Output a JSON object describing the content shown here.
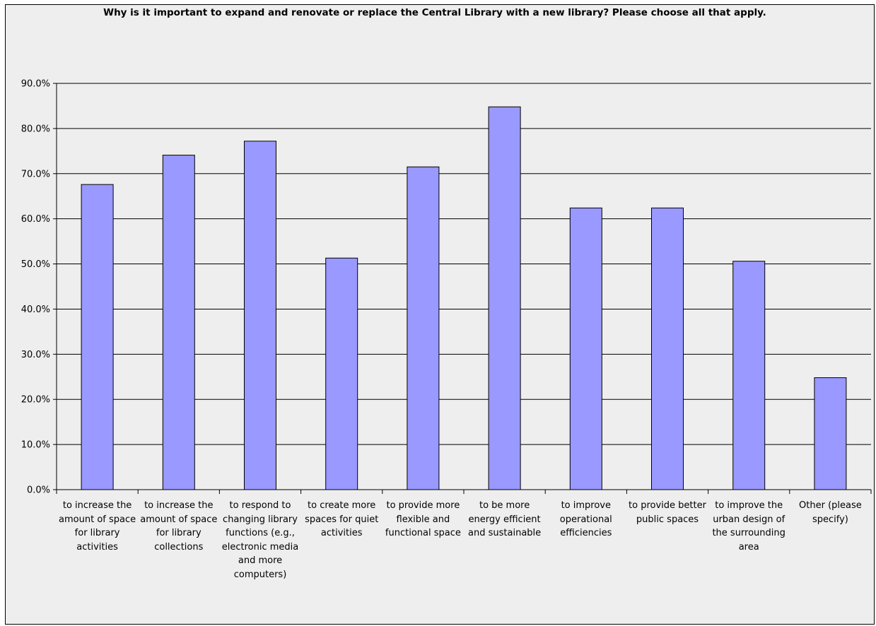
{
  "chart_data": {
    "type": "bar",
    "title": "Why is it important to expand and renovate or replace the Central Library with a new library?  Please choose all that apply.",
    "xlabel": "",
    "ylabel": "",
    "ylim": [
      0,
      0.9
    ],
    "yticks": [
      "0.0%",
      "10.0%",
      "20.0%",
      "30.0%",
      "40.0%",
      "50.0%",
      "60.0%",
      "70.0%",
      "80.0%",
      "90.0%"
    ],
    "grid": true,
    "legend": "none",
    "bar_color": "#9999ff",
    "categories": [
      "to increase the amount of space for library activities",
      "to increase the amount of space for library collections",
      "to respond to changing library functions (e.g., electronic media and more computers)",
      "to create more spaces for quiet activities",
      "to provide more flexible and functional space",
      "to be more energy efficient and sustainable",
      "to improve operational efficiencies",
      "to provide better public spaces",
      "to improve the urban design of the surrounding area",
      "Other (please specify)"
    ],
    "values": [
      0.676,
      0.741,
      0.772,
      0.513,
      0.715,
      0.848,
      0.624,
      0.624,
      0.506,
      0.248
    ]
  }
}
